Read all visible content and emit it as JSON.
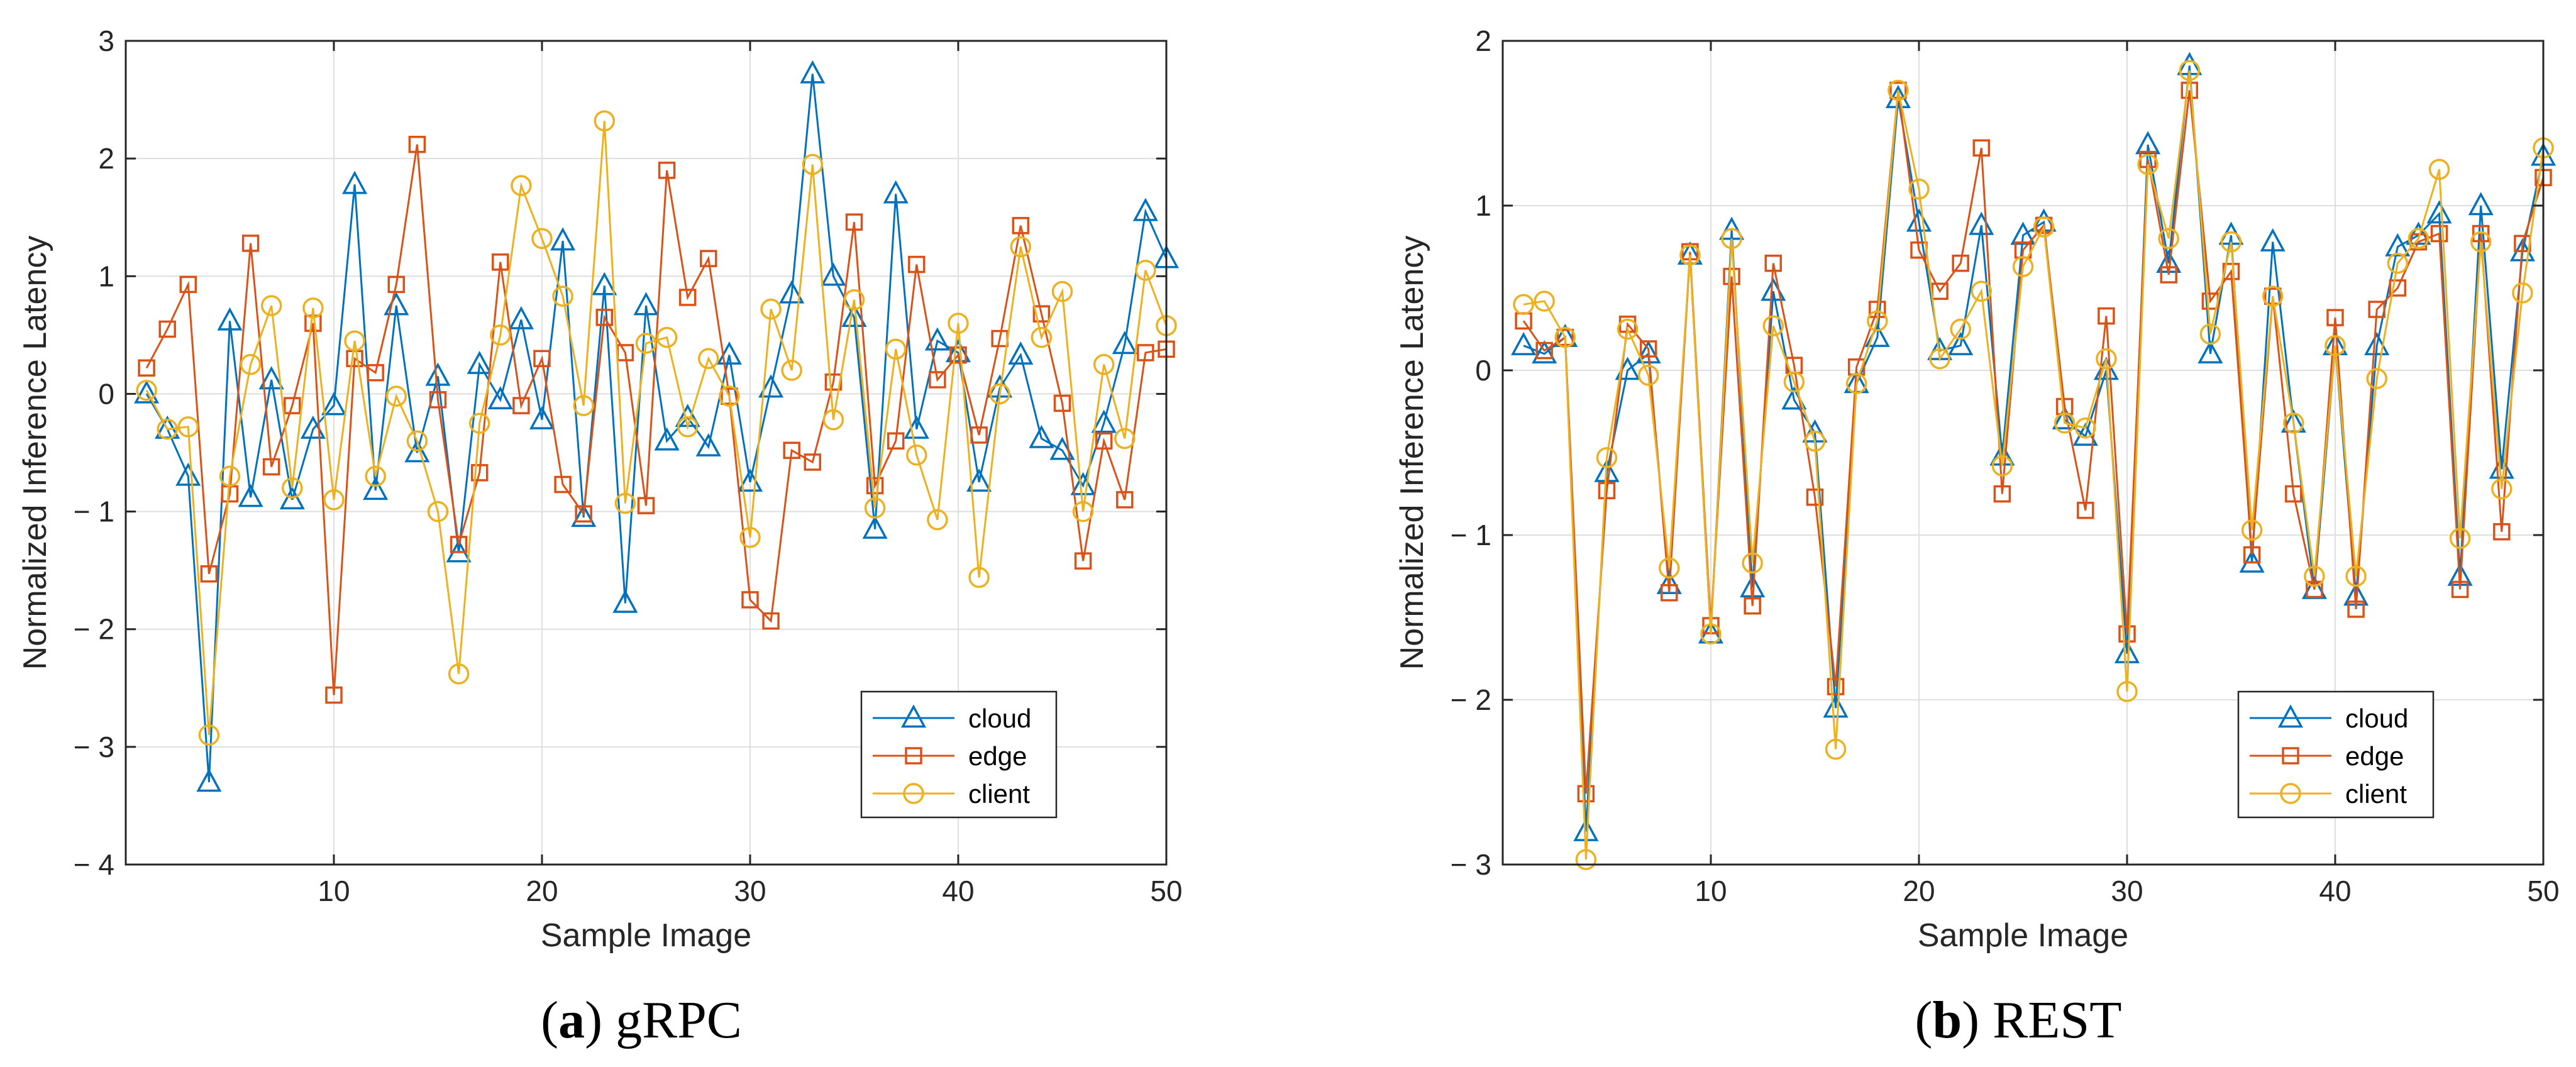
{
  "chart_data": [
    {
      "type": "line",
      "id": "a",
      "caption_letter": "a",
      "caption_text": "gRPC",
      "xlabel": "Sample Image",
      "ylabel": "Normalized Inference Latency",
      "xlim": [
        0,
        50
      ],
      "ylim": [
        -4,
        3
      ],
      "xticks": [
        10,
        20,
        30,
        40,
        50
      ],
      "yticks": [
        -4,
        -3,
        -2,
        -1,
        0,
        1,
        2,
        3
      ],
      "ytick_labels": [
        "− 4",
        "− 3",
        "− 2",
        "− 1",
        "0",
        "1",
        "2",
        "3"
      ],
      "grid": true,
      "legend_position": "bottom-right",
      "x": [
        1,
        2,
        3,
        4,
        5,
        6,
        7,
        8,
        9,
        10,
        11,
        12,
        13,
        14,
        15,
        16,
        17,
        18,
        19,
        20,
        21,
        22,
        23,
        24,
        25,
        26,
        27,
        28,
        29,
        30,
        31,
        32,
        33,
        34,
        35,
        36,
        37,
        38,
        39,
        40,
        41,
        42,
        43,
        44,
        45,
        46,
        47,
        48,
        49,
        50
      ],
      "series": [
        {
          "name": "cloud",
          "color": "#0072BD",
          "marker": "triangle",
          "values": [
            0.0,
            -0.3,
            -0.7,
            -3.3,
            0.62,
            -0.88,
            0.12,
            -0.9,
            -0.3,
            -0.1,
            1.78,
            -0.82,
            0.75,
            -0.5,
            0.15,
            -1.35,
            0.25,
            -0.05,
            0.63,
            -0.22,
            1.3,
            -1.05,
            0.92,
            -1.78,
            0.75,
            -0.4,
            -0.2,
            -0.45,
            0.33,
            -0.75,
            0.05,
            0.85,
            2.72,
            1.0,
            0.65,
            -1.15,
            1.7,
            -0.3,
            0.45,
            0.35,
            -0.75,
            0.05,
            0.33,
            -0.38,
            -0.48,
            -0.78,
            -0.25,
            0.42,
            1.55,
            1.15
          ]
        },
        {
          "name": "edge",
          "color": "#D95319",
          "marker": "square",
          "values": [
            0.22,
            0.55,
            0.93,
            -1.53,
            -0.85,
            1.28,
            -0.62,
            -0.1,
            0.6,
            -2.56,
            0.3,
            0.18,
            0.93,
            2.12,
            -0.05,
            -1.28,
            -0.67,
            1.12,
            -0.1,
            0.3,
            -0.77,
            -1.02,
            0.65,
            0.35,
            -0.95,
            1.9,
            0.82,
            1.15,
            -0.02,
            -1.75,
            -1.93,
            -0.48,
            -0.58,
            0.1,
            1.46,
            -0.78,
            -0.4,
            1.1,
            0.12,
            0.33,
            -0.35,
            0.47,
            1.43,
            0.68,
            -0.08,
            -1.42,
            -0.4,
            -0.9,
            0.35,
            0.38
          ]
        },
        {
          "name": "client",
          "color": "#EDB120",
          "marker": "circle",
          "values": [
            0.03,
            -0.3,
            -0.28,
            -2.9,
            -0.7,
            0.25,
            0.75,
            -0.8,
            0.73,
            -0.9,
            0.45,
            -0.7,
            -0.02,
            -0.4,
            -1.0,
            -2.38,
            -0.25,
            0.5,
            1.77,
            1.32,
            0.83,
            -0.1,
            2.32,
            -0.93,
            0.43,
            0.48,
            -0.28,
            0.3,
            -0.02,
            -1.22,
            0.72,
            0.2,
            1.95,
            -0.22,
            0.8,
            -0.97,
            0.38,
            -0.52,
            -1.07,
            0.6,
            -1.56,
            0.0,
            1.25,
            0.48,
            0.87,
            -1.0,
            0.25,
            -0.38,
            1.05,
            0.58
          ]
        }
      ]
    },
    {
      "type": "line",
      "id": "b",
      "caption_letter": "b",
      "caption_text": "REST",
      "xlabel": "Sample Image",
      "ylabel": "Normalized Inference Latency",
      "xlim": [
        0,
        50
      ],
      "ylim": [
        -3,
        2
      ],
      "xticks": [
        10,
        20,
        30,
        40,
        50
      ],
      "yticks": [
        -3,
        -2,
        -1,
        0,
        1,
        2
      ],
      "ytick_labels": [
        "− 3",
        "− 2",
        "− 1",
        "0",
        "1",
        "2"
      ],
      "grid": true,
      "legend_position": "bottom-right",
      "x": [
        1,
        2,
        3,
        4,
        5,
        6,
        7,
        8,
        9,
        10,
        11,
        12,
        13,
        14,
        15,
        16,
        17,
        18,
        19,
        20,
        21,
        22,
        23,
        24,
        25,
        26,
        27,
        28,
        29,
        30,
        31,
        32,
        33,
        34,
        35,
        36,
        37,
        38,
        39,
        40,
        41,
        42,
        43,
        44,
        45,
        46,
        47,
        48,
        49,
        50
      ],
      "series": [
        {
          "name": "cloud",
          "color": "#0072BD",
          "marker": "triangle",
          "values": [
            0.15,
            0.1,
            0.2,
            -2.8,
            -0.62,
            0.0,
            0.1,
            -1.3,
            0.7,
            -1.6,
            0.85,
            -1.32,
            0.48,
            -0.18,
            -0.38,
            -2.05,
            -0.08,
            0.2,
            1.65,
            0.9,
            0.12,
            0.15,
            0.88,
            -0.52,
            0.82,
            0.9,
            -0.3,
            -0.4,
            0.0,
            -1.72,
            1.37,
            0.65,
            1.85,
            0.1,
            0.82,
            -1.17,
            0.78,
            -0.32,
            -1.33,
            0.15,
            -1.37,
            0.15,
            0.75,
            0.82,
            0.95,
            -1.25,
            1.0,
            -0.6,
            0.72,
            1.3
          ]
        },
        {
          "name": "edge",
          "color": "#D95319",
          "marker": "square",
          "values": [
            0.3,
            0.12,
            0.2,
            -2.57,
            -0.73,
            0.28,
            0.13,
            -1.35,
            0.72,
            -1.55,
            0.57,
            -1.43,
            0.65,
            0.03,
            -0.77,
            -1.92,
            0.02,
            0.37,
            1.7,
            0.73,
            0.48,
            0.65,
            1.35,
            -0.75,
            0.73,
            0.88,
            -0.22,
            -0.85,
            0.33,
            -1.6,
            1.28,
            0.58,
            1.7,
            0.42,
            0.6,
            -1.12,
            0.45,
            -0.75,
            -1.33,
            0.32,
            -1.45,
            0.37,
            0.5,
            0.78,
            0.83,
            -1.33,
            0.83,
            -0.98,
            0.77,
            1.17
          ]
        },
        {
          "name": "client",
          "color": "#EDB120",
          "marker": "circle",
          "values": [
            0.4,
            0.42,
            0.2,
            -2.97,
            -0.53,
            0.25,
            -0.03,
            -1.2,
            0.7,
            -1.6,
            0.8,
            -1.17,
            0.27,
            -0.07,
            -0.43,
            -2.3,
            -0.08,
            0.3,
            1.7,
            1.1,
            0.07,
            0.25,
            0.48,
            -0.58,
            0.63,
            0.87,
            -0.32,
            -0.35,
            0.07,
            -1.95,
            1.25,
            0.8,
            1.82,
            0.22,
            0.78,
            -0.97,
            0.45,
            -0.32,
            -1.25,
            0.15,
            -1.25,
            -0.05,
            0.65,
            0.8,
            1.22,
            -1.02,
            0.78,
            -0.72,
            0.47,
            1.35
          ]
        }
      ]
    }
  ]
}
